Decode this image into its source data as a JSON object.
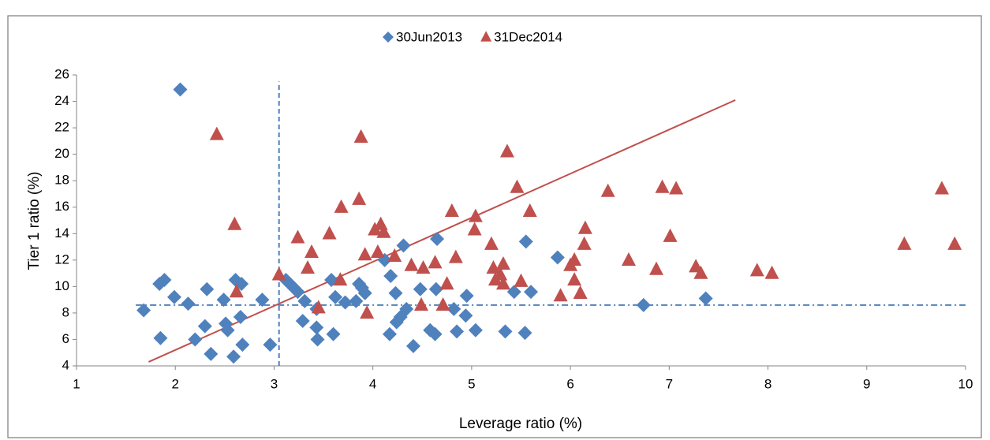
{
  "chart_data": {
    "type": "scatter",
    "x_label": "Leverage ratio (%)",
    "y_label": "Tier 1 ratio (%)",
    "xlim": [
      1,
      10
    ],
    "xticks": [
      1,
      2,
      3,
      4,
      5,
      6,
      7,
      8,
      9,
      10
    ],
    "ylim": [
      4,
      26
    ],
    "yticks": [
      4,
      6,
      8,
      10,
      12,
      14,
      16,
      18,
      20,
      22,
      24,
      26
    ],
    "legend": "top",
    "series": [
      {
        "name": "30Jun2013",
        "color": "#4f81bd",
        "marker": "diamond",
        "x": [
          1.68,
          1.85,
          1.84,
          1.89,
          1.99,
          2.05,
          2.13,
          2.2,
          2.3,
          2.32,
          2.36,
          2.49,
          2.51,
          2.53,
          2.59,
          2.61,
          2.67,
          2.66,
          2.68,
          2.88,
          2.96,
          3.12,
          3.16,
          3.2,
          3.24,
          3.31,
          3.29,
          3.43,
          3.43,
          3.44,
          3.58,
          3.6,
          3.62,
          3.72,
          3.83,
          3.86,
          3.89,
          3.92,
          4.12,
          4.17,
          4.18,
          4.23,
          4.24,
          4.28,
          4.31,
          4.34,
          4.41,
          4.48,
          4.58,
          4.63,
          4.64,
          4.65,
          4.85,
          4.82,
          4.94,
          4.95,
          5.04,
          5.34,
          5.43,
          5.54,
          5.55,
          5.6,
          5.87,
          6.74,
          7.37
        ],
        "values": [
          8.2,
          6.1,
          10.2,
          10.5,
          9.2,
          24.9,
          8.7,
          6.0,
          7.0,
          9.8,
          4.9,
          9.0,
          7.2,
          6.7,
          4.7,
          10.5,
          10.2,
          7.7,
          5.6,
          9.0,
          5.6,
          10.5,
          10.2,
          9.9,
          9.6,
          8.9,
          7.4,
          8.3,
          6.9,
          6.0,
          10.5,
          6.4,
          9.2,
          8.8,
          8.9,
          10.2,
          9.9,
          9.5,
          12.0,
          6.4,
          10.8,
          9.5,
          7.3,
          7.7,
          13.1,
          8.3,
          5.5,
          9.8,
          6.7,
          6.4,
          9.8,
          13.6,
          6.6,
          8.3,
          7.8,
          9.3,
          6.7,
          6.6,
          9.6,
          6.5,
          13.4,
          9.6,
          12.2,
          8.6,
          9.1
        ]
      },
      {
        "name": "31Dec2014",
        "color": "#c0504d",
        "marker": "triangle",
        "x": [
          2.42,
          2.6,
          2.62,
          3.05,
          3.24,
          3.34,
          3.38,
          3.45,
          3.56,
          3.68,
          3.67,
          3.86,
          3.88,
          3.92,
          3.94,
          4.02,
          4.05,
          4.08,
          4.11,
          4.22,
          4.39,
          4.49,
          4.51,
          4.63,
          4.71,
          4.75,
          4.8,
          4.84,
          5.03,
          5.04,
          5.2,
          5.22,
          5.24,
          5.29,
          5.32,
          5.32,
          5.36,
          5.46,
          5.5,
          5.59,
          5.9,
          6.0,
          6.04,
          6.04,
          6.1,
          6.14,
          6.15,
          6.38,
          6.59,
          6.87,
          6.93,
          7.01,
          7.07,
          7.27,
          7.32,
          7.89,
          8.04,
          9.38,
          9.76,
          9.89
        ],
        "values": [
          21.5,
          14.7,
          9.6,
          10.9,
          13.7,
          11.4,
          12.6,
          8.4,
          14.0,
          16.0,
          10.5,
          16.6,
          21.3,
          12.4,
          8.0,
          14.3,
          12.6,
          14.7,
          14.1,
          12.3,
          11.6,
          8.6,
          11.4,
          11.8,
          8.6,
          10.2,
          15.7,
          12.2,
          14.3,
          15.3,
          13.2,
          11.4,
          10.5,
          10.9,
          11.7,
          10.2,
          20.2,
          17.5,
          10.4,
          15.7,
          9.3,
          11.6,
          10.5,
          12.0,
          9.5,
          13.2,
          14.4,
          17.2,
          12.0,
          11.3,
          17.5,
          13.8,
          17.4,
          11.5,
          11.0,
          11.2,
          11.0,
          13.2,
          17.4,
          13.2
        ]
      }
    ],
    "reference_lines": [
      {
        "color": "#4f81bd",
        "style": "dashed",
        "x": [
          3.05,
          3.05
        ],
        "y": [
          4,
          25.5
        ]
      },
      {
        "color": "#4f81bd",
        "style": "dashdot",
        "x": [
          1.6,
          10
        ],
        "y": [
          8.6,
          8.6
        ]
      },
      {
        "color": "#c0504d",
        "style": "solid",
        "x": [
          1.73,
          7.67
        ],
        "y": [
          4.3,
          24.1
        ]
      }
    ]
  }
}
